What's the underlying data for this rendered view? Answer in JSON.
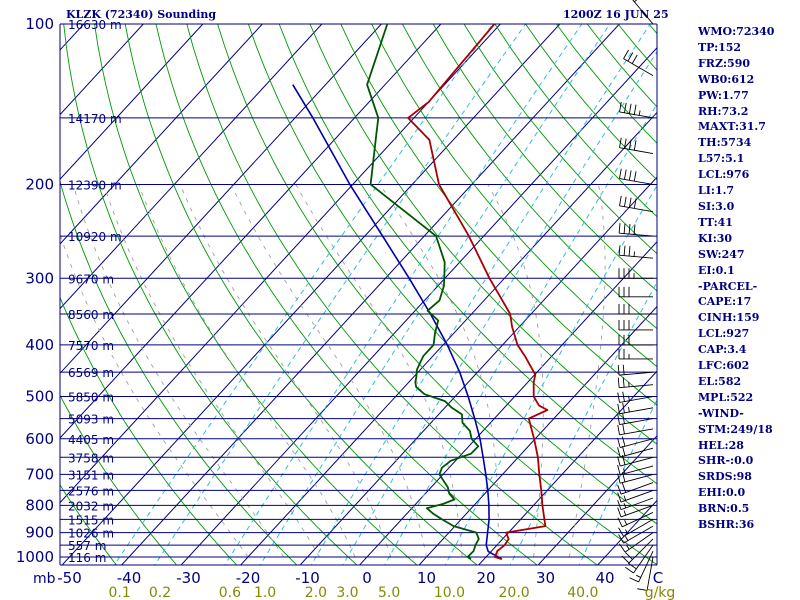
{
  "header": {
    "station": "KLZK (72340) Sounding",
    "time": "1200Z 16 JUN 25"
  },
  "indices": [
    "WMO:72340",
    "TP:152",
    "FRZ:590",
    "WB0:612",
    "PW:1.77",
    "RH:73.2",
    "MAXT:31.7",
    "TH:5734",
    "L57:5.1",
    "LCL:976",
    "LI:1.7",
    "SI:3.0",
    "TT:41",
    "KI:30",
    "SW:247",
    "EI:0.1",
    "-PARCEL-",
    "CAPE:17",
    "CINH:159",
    "LCL:927",
    "CAP:3.4",
    "LFC:602",
    "EL:582",
    "MPL:522",
    "-WIND-",
    "STM:249/18",
    "HEL:28",
    "SHR-:0.0",
    "SRDS:98",
    "EHI:0.0",
    "BRN:0.5",
    "BSHR:36"
  ],
  "colors": {
    "isobar": "#000080",
    "isotherm": "#000080",
    "dry_adiabat": "#009900",
    "moist_adiabat": "#a0a0a0",
    "mixing_ratio": "#33bbdd",
    "temperature": "#aa0000",
    "dewpoint": "#005500",
    "parcel": "#0000aa",
    "wind": "#000000",
    "tick_temp": "#000080",
    "tick_mix": "#888800",
    "pressure_label": "#000080"
  },
  "chart_data": {
    "type": "skew-t",
    "pressure_ticks": [
      "100",
      "200",
      "300",
      "400",
      "500",
      "600",
      "700",
      "800",
      "900",
      "1000"
    ],
    "pressure_levels": [
      100,
      200,
      300,
      400,
      500,
      600,
      700,
      800,
      900,
      1000
    ],
    "pressure_unit": "mb",
    "temp_ticks": [
      "-50",
      "-40",
      "-30",
      "-20",
      "-10",
      "0",
      "10",
      "20",
      "30",
      "40",
      "C"
    ],
    "temp_values": [
      -50,
      -40,
      -30,
      -20,
      -10,
      0,
      10,
      20,
      30,
      40
    ],
    "mixing_ticks": [
      "0.1",
      "0.2",
      "0.6",
      "1.0",
      "2.0",
      "3.0",
      "5.0",
      "10.0",
      "20.0",
      "40.0",
      "g/kg"
    ],
    "mixing_values": [
      0.1,
      0.2,
      0.6,
      1.0,
      2.0,
      3.0,
      5.0,
      10.0,
      20.0,
      40.0
    ],
    "heights": [
      {
        "p": 100,
        "label": "16630 m"
      },
      {
        "p": 150,
        "label": "14170 m"
      },
      {
        "p": 200,
        "label": "12390 m"
      },
      {
        "p": 250,
        "label": "10920 m"
      },
      {
        "p": 300,
        "label": "9670 m"
      },
      {
        "p": 350,
        "label": "8560 m"
      },
      {
        "p": 400,
        "label": "7570 m"
      },
      {
        "p": 450,
        "label": "6569 m"
      },
      {
        "p": 500,
        "label": "5850 m"
      },
      {
        "p": 550,
        "label": "5093 m"
      },
      {
        "p": 600,
        "label": "4405 m"
      },
      {
        "p": 650,
        "label": "3758 m"
      },
      {
        "p": 700,
        "label": "3151 m"
      },
      {
        "p": 750,
        "label": "2576 m"
      },
      {
        "p": 800,
        "label": "2032 m"
      },
      {
        "p": 850,
        "label": "1515 m"
      },
      {
        "p": 900,
        "label": "1026 m"
      },
      {
        "p": 950,
        "label": "557 m"
      },
      {
        "p": 1000,
        "label": "116 m"
      }
    ],
    "temperature": [
      [
        1009,
        23.0
      ],
      [
        1000,
        21.5
      ],
      [
        975,
        21.0
      ],
      [
        950,
        21.3
      ],
      [
        925,
        21.0
      ],
      [
        900,
        19.6
      ],
      [
        875,
        25.2
      ],
      [
        850,
        24.0
      ],
      [
        800,
        21.5
      ],
      [
        750,
        19.0
      ],
      [
        700,
        16.2
      ],
      [
        650,
        13.3
      ],
      [
        600,
        9.8
      ],
      [
        550,
        5.8
      ],
      [
        530,
        7.6
      ],
      [
        520,
        5.5
      ],
      [
        500,
        3.2
      ],
      [
        470,
        1.0
      ],
      [
        455,
        0.1
      ],
      [
        420,
        -4.5
      ],
      [
        400,
        -7.5
      ],
      [
        370,
        -11.2
      ],
      [
        350,
        -13.5
      ],
      [
        300,
        -22.5
      ],
      [
        250,
        -32.5
      ],
      [
        200,
        -45.5
      ],
      [
        165,
        -54
      ],
      [
        150,
        -61
      ],
      [
        140,
        -60
      ],
      [
        100,
        -61
      ]
    ],
    "dewpoint": [
      [
        1009,
        17.8
      ],
      [
        1000,
        16.9
      ],
      [
        975,
        17.0
      ],
      [
        950,
        16.4
      ],
      [
        925,
        16.0
      ],
      [
        900,
        14.6
      ],
      [
        875,
        9.8
      ],
      [
        850,
        6.8
      ],
      [
        830,
        4.5
      ],
      [
        810,
        2.5
      ],
      [
        795,
        4.6
      ],
      [
        780,
        5.8
      ],
      [
        760,
        4.0
      ],
      [
        740,
        2.8
      ],
      [
        700,
        -0.6
      ],
      [
        680,
        -1.2
      ],
      [
        660,
        -0.8
      ],
      [
        640,
        1.5
      ],
      [
        620,
        1.6
      ],
      [
        600,
        -0.7
      ],
      [
        580,
        -2.2
      ],
      [
        560,
        -4.7
      ],
      [
        540,
        -6.1
      ],
      [
        525,
        -8.8
      ],
      [
        510,
        -11.0
      ],
      [
        495,
        -15.5
      ],
      [
        480,
        -18.0
      ],
      [
        470,
        -18.9
      ],
      [
        460,
        -19.5
      ],
      [
        445,
        -20.6
      ],
      [
        420,
        -21.6
      ],
      [
        400,
        -21.6
      ],
      [
        380,
        -23.2
      ],
      [
        360,
        -24.6
      ],
      [
        345,
        -27.9
      ],
      [
        330,
        -27.5
      ],
      [
        310,
        -29.0
      ],
      [
        300,
        -30.1
      ],
      [
        280,
        -32.5
      ],
      [
        250,
        -38.0
      ],
      [
        200,
        -57.0
      ],
      [
        160,
        -64.0
      ],
      [
        150,
        -66.0
      ],
      [
        130,
        -73.0
      ],
      [
        100,
        -79.0
      ]
    ],
    "parcel": [
      [
        1009,
        23.0
      ],
      [
        976,
        19.5
      ],
      [
        950,
        18.2
      ],
      [
        900,
        16.5
      ],
      [
        850,
        14.7
      ],
      [
        800,
        12.5
      ],
      [
        750,
        10.0
      ],
      [
        700,
        7.2
      ],
      [
        650,
        4.1
      ],
      [
        600,
        0.7
      ],
      [
        550,
        -3.3
      ],
      [
        500,
        -7.8
      ],
      [
        450,
        -13.0
      ],
      [
        400,
        -19.3
      ],
      [
        350,
        -26.9
      ],
      [
        300,
        -36.0
      ],
      [
        250,
        -47.0
      ],
      [
        200,
        -60.5
      ],
      [
        150,
        -77.0
      ],
      [
        130,
        -85.5
      ]
    ],
    "wind_barbs": [
      [
        1000,
        190,
        8
      ],
      [
        975,
        205,
        15
      ],
      [
        950,
        215,
        18
      ],
      [
        925,
        225,
        18
      ],
      [
        900,
        235,
        15
      ],
      [
        875,
        240,
        15
      ],
      [
        850,
        240,
        15
      ],
      [
        825,
        245,
        15
      ],
      [
        800,
        250,
        15
      ],
      [
        775,
        250,
        15
      ],
      [
        750,
        250,
        15
      ],
      [
        725,
        250,
        20
      ],
      [
        700,
        255,
        20
      ],
      [
        675,
        255,
        15
      ],
      [
        650,
        255,
        20
      ],
      [
        625,
        255,
        20
      ],
      [
        600,
        255,
        20
      ],
      [
        575,
        260,
        20
      ],
      [
        550,
        260,
        20
      ],
      [
        525,
        260,
        25
      ],
      [
        500,
        260,
        25
      ],
      [
        475,
        265,
        25
      ],
      [
        450,
        265,
        20
      ],
      [
        425,
        270,
        25
      ],
      [
        400,
        270,
        30
      ],
      [
        375,
        270,
        30
      ],
      [
        350,
        270,
        30
      ],
      [
        325,
        270,
        30
      ],
      [
        300,
        270,
        35
      ],
      [
        275,
        275,
        35
      ],
      [
        250,
        275,
        40
      ],
      [
        225,
        280,
        40
      ],
      [
        200,
        280,
        40
      ],
      [
        175,
        280,
        40
      ],
      [
        150,
        280,
        45
      ],
      [
        125,
        300,
        30
      ],
      [
        100,
        320,
        15
      ]
    ]
  }
}
